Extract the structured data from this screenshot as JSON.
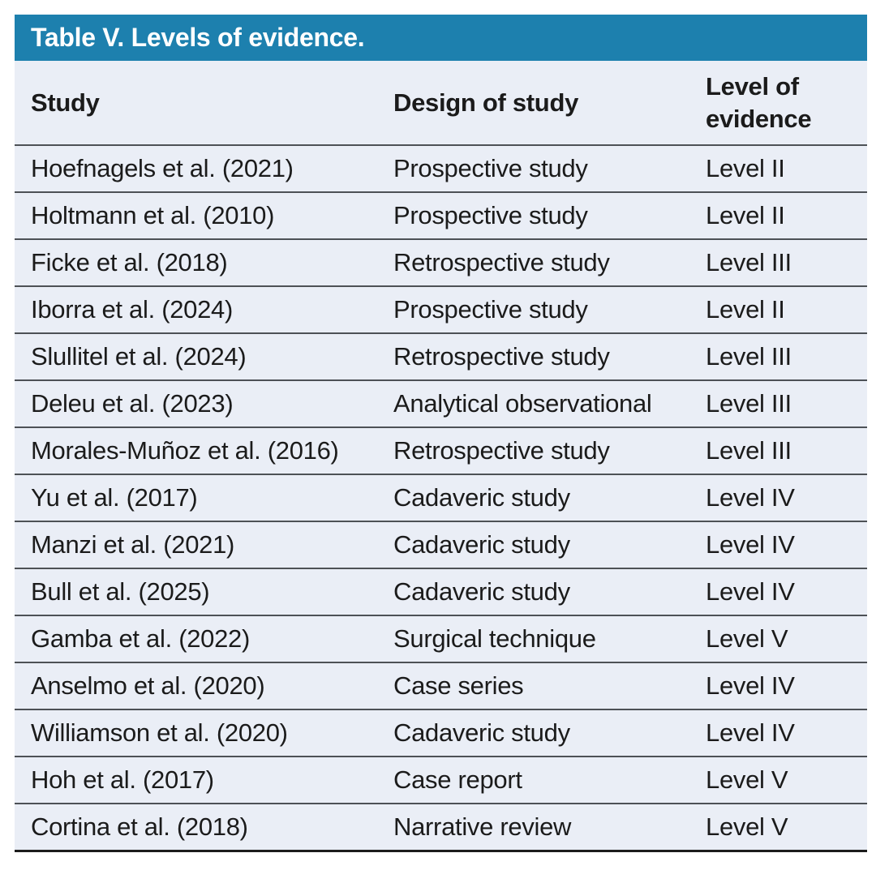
{
  "title": "Table V. Levels of evidence.",
  "columns": {
    "study": "Study",
    "design": "Design of study",
    "level": "Level of evidence"
  },
  "rows": [
    {
      "study": "Hoefnagels et al. (2021)",
      "design": "Prospective study",
      "level": "Level II"
    },
    {
      "study": "Holtmann et al. (2010)",
      "design": "Prospective study",
      "level": "Level II"
    },
    {
      "study": "Ficke et al. (2018)",
      "design": "Retrospective study",
      "level": "Level III"
    },
    {
      "study": "Iborra et al. (2024)",
      "design": "Prospective study",
      "level": "Level II"
    },
    {
      "study": "Slullitel et al. (2024)",
      "design": "Retrospective study",
      "level": "Level III"
    },
    {
      "study": "Deleu et al. (2023)",
      "design": "Analytical observational",
      "level": "Level III"
    },
    {
      "study": "Morales-Muñoz et al. (2016)",
      "design": "Retrospective study",
      "level": "Level III"
    },
    {
      "study": "Yu et al. (2017)",
      "design": "Cadaveric study",
      "level": "Level IV"
    },
    {
      "study": "Manzi et al. (2021)",
      "design": "Cadaveric study",
      "level": "Level IV"
    },
    {
      "study": "Bull et al. (2025)",
      "design": "Cadaveric study",
      "level": "Level IV"
    },
    {
      "study": "Gamba et al. (2022)",
      "design": "Surgical technique",
      "level": "Level V"
    },
    {
      "study": "Anselmo et al. (2020)",
      "design": "Case series",
      "level": "Level IV"
    },
    {
      "study": "Williamson et al. (2020)",
      "design": "Cadaveric study",
      "level": "Level IV"
    },
    {
      "study": "Hoh et al. (2017)",
      "design": "Case report",
      "level": "Level V"
    },
    {
      "study": "Cortina et al. (2018)",
      "design": "Narrative review",
      "level": "Level V"
    }
  ],
  "colors": {
    "accent_header_bg": "#1d80ae",
    "title_text": "#ffffff",
    "row_bg": "#eaeef6",
    "separator_line": "#4d5156",
    "bottom_border": "#1c1c1c",
    "body_text": "#1b1b1b",
    "page_bg": "#ffffff"
  },
  "chart_data": {
    "type": "table",
    "title": "Table V. Levels of evidence.",
    "columns": [
      "Study",
      "Design of study",
      "Level of evidence"
    ],
    "rows": [
      [
        "Hoefnagels et al. (2021)",
        "Prospective study",
        "Level II"
      ],
      [
        "Holtmann et al. (2010)",
        "Prospective study",
        "Level II"
      ],
      [
        "Ficke et al. (2018)",
        "Retrospective study",
        "Level III"
      ],
      [
        "Iborra et al. (2024)",
        "Prospective study",
        "Level II"
      ],
      [
        "Slullitel et al. (2024)",
        "Retrospective study",
        "Level III"
      ],
      [
        "Deleu et al. (2023)",
        "Analytical observational",
        "Level III"
      ],
      [
        "Morales-Muñoz et al. (2016)",
        "Retrospective study",
        "Level III"
      ],
      [
        "Yu et al. (2017)",
        "Cadaveric study",
        "Level IV"
      ],
      [
        "Manzi et al. (2021)",
        "Cadaveric study",
        "Level IV"
      ],
      [
        "Bull et al. (2025)",
        "Cadaveric study",
        "Level IV"
      ],
      [
        "Gamba et al. (2022)",
        "Surgical technique",
        "Level V"
      ],
      [
        "Anselmo et al. (2020)",
        "Case series",
        "Level IV"
      ],
      [
        "Williamson et al. (2020)",
        "Cadaveric study",
        "Level IV"
      ],
      [
        "Hoh et al. (2017)",
        "Case report",
        "Level V"
      ],
      [
        "Cortina et al. (2018)",
        "Narrative review",
        "Level V"
      ]
    ]
  }
}
